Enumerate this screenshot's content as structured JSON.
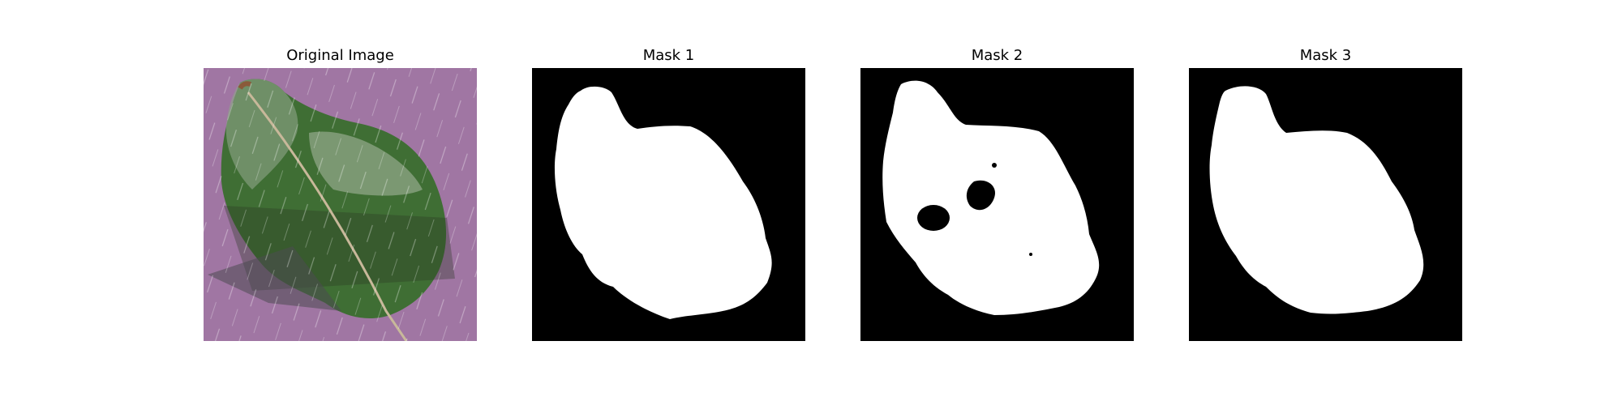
{
  "figure": {
    "panels": [
      {
        "title": "Original Image",
        "kind": "photo",
        "subject": "leaf-on-purple-background"
      },
      {
        "title": "Mask 1",
        "kind": "binary-mask"
      },
      {
        "title": "Mask 2",
        "kind": "binary-mask"
      },
      {
        "title": "Mask 3",
        "kind": "binary-mask"
      }
    ],
    "colors": {
      "mask_foreground": "#ffffff",
      "mask_background": "#000000",
      "photo_background": "#9a6f9e",
      "leaf": "#3f6e34"
    }
  }
}
